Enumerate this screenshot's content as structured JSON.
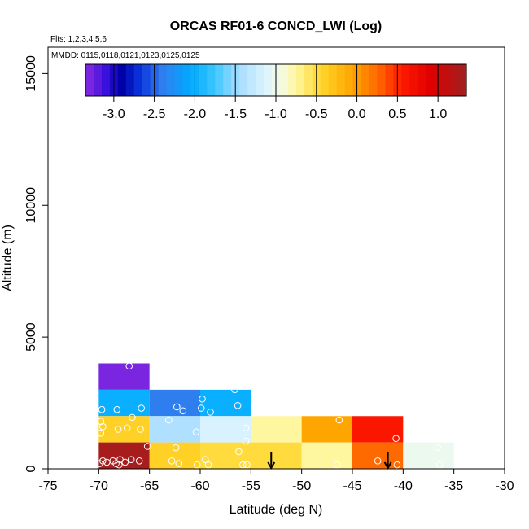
{
  "chart_data": {
    "type": "heatmap",
    "title": "ORCAS RF01-6 CONCD_LWI (Log)",
    "flights_label": "Flts: 1,2,3,4,5,6",
    "dates_label": "MMDD: 0115,0118,0121,0123,0125,0125",
    "xlabel": "Latitude (deg N)",
    "ylabel": "Altitude (m)",
    "xlim": [
      -75,
      -30
    ],
    "ylim": [
      0,
      16000
    ],
    "x_ticks": [
      -75,
      -70,
      -65,
      -60,
      -55,
      -50,
      -45,
      -40,
      -35,
      -30
    ],
    "x_tick_labels": [
      "-75",
      "-70",
      "-65",
      "-60",
      "-55",
      "-50",
      "-45",
      "-40",
      "-35",
      "-30"
    ],
    "y_ticks": [
      0,
      5000,
      10000,
      15000
    ],
    "y_tick_labels": [
      "0",
      "5000",
      "10000",
      "15000"
    ],
    "colorbar": {
      "min": -3.35,
      "max": 1.35,
      "ticks": [
        -3.0,
        -2.5,
        -2.0,
        -1.5,
        -1.0,
        -0.5,
        0.0,
        0.5,
        1.0
      ],
      "tick_labels": [
        "-3.0",
        "-2.5",
        "-2.0",
        "-1.5",
        "-1.0",
        "-0.5",
        "0.0",
        "0.5",
        "1.0"
      ],
      "stops": [
        {
          "v": -3.35,
          "c": "#8a2be2"
        },
        {
          "v": -3.1,
          "c": "#3a10dd"
        },
        {
          "v": -2.9,
          "c": "#0000a8"
        },
        {
          "v": -2.7,
          "c": "#0a2fd8"
        },
        {
          "v": -2.4,
          "c": "#2f7ef0"
        },
        {
          "v": -2.05,
          "c": "#00aaff"
        },
        {
          "v": -1.75,
          "c": "#3fc7ff"
        },
        {
          "v": -1.45,
          "c": "#a8dcff"
        },
        {
          "v": -1.15,
          "c": "#d8f3ff"
        },
        {
          "v": -0.95,
          "c": "#f3fbe8"
        },
        {
          "v": -0.75,
          "c": "#fff6a0"
        },
        {
          "v": -0.45,
          "c": "#ffd62a"
        },
        {
          "v": -0.05,
          "c": "#ffa500"
        },
        {
          "v": 0.25,
          "c": "#ff6a00"
        },
        {
          "v": 0.55,
          "c": "#ff1a00"
        },
        {
          "v": 0.9,
          "c": "#e00000"
        },
        {
          "v": 1.35,
          "c": "#a02020"
        }
      ]
    },
    "cells": [
      {
        "lat": [
          -70,
          -65
        ],
        "alt": [
          3000,
          4000
        ],
        "value": -3.3
      },
      {
        "lat": [
          -70,
          -65
        ],
        "alt": [
          2000,
          3000
        ],
        "value": -2.0
      },
      {
        "lat": [
          -70,
          -65
        ],
        "alt": [
          1000,
          2000
        ],
        "value": -0.4
      },
      {
        "lat": [
          -70,
          -65
        ],
        "alt": [
          0,
          1000
        ],
        "value": 1.3
      },
      {
        "lat": [
          -65,
          -60
        ],
        "alt": [
          2000,
          3000
        ],
        "value": -2.4
      },
      {
        "lat": [
          -65,
          -60
        ],
        "alt": [
          1000,
          2000
        ],
        "value": -1.4
      },
      {
        "lat": [
          -65,
          -60
        ],
        "alt": [
          0,
          1000
        ],
        "value": -0.4
      },
      {
        "lat": [
          -60,
          -55
        ],
        "alt": [
          2000,
          3000
        ],
        "value": -2.0
      },
      {
        "lat": [
          -60,
          -55
        ],
        "alt": [
          1000,
          2000
        ],
        "value": -1.15
      },
      {
        "lat": [
          -60,
          -55
        ],
        "alt": [
          0,
          1000
        ],
        "value": -0.5
      },
      {
        "lat": [
          -55,
          -50
        ],
        "alt": [
          1000,
          2000
        ],
        "value": -0.75
      },
      {
        "lat": [
          -55,
          -50
        ],
        "alt": [
          0,
          1000
        ],
        "value": -0.5
      },
      {
        "lat": [
          -50,
          -45
        ],
        "alt": [
          1000,
          2000
        ],
        "value": -0.05
      },
      {
        "lat": [
          -50,
          -45
        ],
        "alt": [
          0,
          1000
        ],
        "value": -0.75
      },
      {
        "lat": [
          -45,
          -40
        ],
        "alt": [
          1000,
          2000
        ],
        "value": 0.6
      },
      {
        "lat": [
          -45,
          -40
        ],
        "alt": [
          0,
          1000
        ],
        "value": 0.25
      },
      {
        "lat": [
          -40,
          -35
        ],
        "alt": [
          0,
          1000
        ],
        "value": -1.0
      }
    ],
    "points": [
      {
        "lat": -67.0,
        "alt": 3900
      },
      {
        "lat": -69.7,
        "alt": 2250
      },
      {
        "lat": -68.2,
        "alt": 2250
      },
      {
        "lat": -65.8,
        "alt": 2300
      },
      {
        "lat": -69.8,
        "alt": 1800
      },
      {
        "lat": -69.6,
        "alt": 1600
      },
      {
        "lat": -68.1,
        "alt": 1500
      },
      {
        "lat": -67.2,
        "alt": 1550
      },
      {
        "lat": -66.7,
        "alt": 1950
      },
      {
        "lat": -65.9,
        "alt": 1500
      },
      {
        "lat": -69.8,
        "alt": 1350
      },
      {
        "lat": -65.2,
        "alt": 850
      },
      {
        "lat": -66.0,
        "alt": 300
      },
      {
        "lat": -66.8,
        "alt": 350
      },
      {
        "lat": -67.4,
        "alt": 250
      },
      {
        "lat": -67.9,
        "alt": 350
      },
      {
        "lat": -68.3,
        "alt": 200
      },
      {
        "lat": -68.6,
        "alt": 300
      },
      {
        "lat": -69.2,
        "alt": 250
      },
      {
        "lat": -69.6,
        "alt": 300
      },
      {
        "lat": -69.9,
        "alt": 200
      },
      {
        "lat": -68.0,
        "alt": 150
      },
      {
        "lat": -62.3,
        "alt": 2350
      },
      {
        "lat": -61.7,
        "alt": 2200
      },
      {
        "lat": -63.1,
        "alt": 1850
      },
      {
        "lat": -62.4,
        "alt": 800
      },
      {
        "lat": -62.8,
        "alt": 300
      },
      {
        "lat": -62.1,
        "alt": 200
      },
      {
        "lat": -60.4,
        "alt": 1400
      },
      {
        "lat": -59.8,
        "alt": 2650
      },
      {
        "lat": -59.9,
        "alt": 2300
      },
      {
        "lat": -59.0,
        "alt": 2150
      },
      {
        "lat": -56.6,
        "alt": 3000
      },
      {
        "lat": -56.3,
        "alt": 2400
      },
      {
        "lat": -59.5,
        "alt": 350
      },
      {
        "lat": -59.2,
        "alt": 150
      },
      {
        "lat": -60.3,
        "alt": 150
      },
      {
        "lat": -55.5,
        "alt": 1550
      },
      {
        "lat": -55.5,
        "alt": 1050
      },
      {
        "lat": -56.2,
        "alt": 650
      },
      {
        "lat": -55.8,
        "alt": 150
      },
      {
        "lat": -55.4,
        "alt": 150
      },
      {
        "lat": -46.3,
        "alt": 1850
      },
      {
        "lat": -46.5,
        "alt": 150
      },
      {
        "lat": -42.5,
        "alt": 300
      },
      {
        "lat": -40.7,
        "alt": 1150
      },
      {
        "lat": -40.6,
        "alt": 150
      },
      {
        "lat": -36.6,
        "alt": 800
      },
      {
        "lat": -36.4,
        "alt": 150
      }
    ],
    "arrows": [
      {
        "lat": -53.0,
        "alt_top": 650,
        "alt_bottom": 0
      },
      {
        "lat": -41.5,
        "alt_top": 650,
        "alt_bottom": 0
      }
    ]
  }
}
